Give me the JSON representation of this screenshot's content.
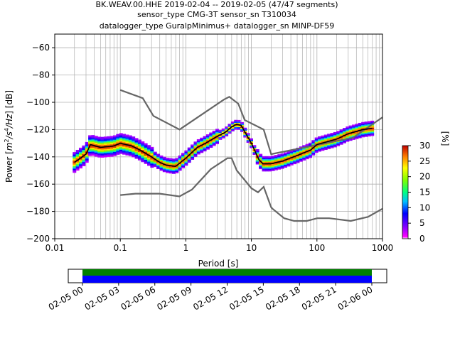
{
  "title": {
    "line1": "BK.WEAV.00.HHE   2019-02-04 -- 2019-02-05  (47/47 segments)",
    "line2": "sensor_type CMG-3T sensor_sn T310034",
    "line3": "datalogger_type GuralpMinimus+ datalogger_sn MINP-DF59"
  },
  "colors": {
    "noise_model": "#666666",
    "mean_line": "#000000",
    "grid": "#b0b0b0",
    "coverage_green": "#008000",
    "coverage_blue": "#0000ff"
  },
  "chart_data": [
    {
      "type": "heatmap",
      "title": "",
      "xlabel": "Period [s]",
      "ylabel_prefix": "Power [",
      "ylabel_unit_m": "m",
      "ylabel_unit_exp2": "2",
      "ylabel_unit_mid": "/s",
      "ylabel_unit_exp4": "4",
      "ylabel_unit_end": "/Hz",
      "ylabel_suffix": "] [dB]",
      "x_scale": "log",
      "xlim": [
        0.01,
        1000
      ],
      "ylim": [
        -200,
        -50
      ],
      "x_ticks": [
        0.01,
        0.1,
        1,
        10,
        100,
        1000
      ],
      "x_tick_labels": [
        "0.01",
        "0.1",
        "1",
        "10",
        "100",
        "1000"
      ],
      "y_ticks": [
        -200,
        -180,
        -160,
        -140,
        -120,
        -100,
        -80,
        -60
      ],
      "y_tick_labels": [
        "−200",
        "−180",
        "−160",
        "−140",
        "−120",
        "−100",
        "−80",
        "−60"
      ],
      "grid": true,
      "colorbar": {
        "label": "[%]",
        "range": [
          0,
          30
        ],
        "ticks": [
          0,
          5,
          10,
          15,
          20,
          25,
          30
        ],
        "tick_labels": [
          "0",
          "5",
          "10",
          "15",
          "20",
          "25",
          "30"
        ]
      },
      "series": [
        {
          "role": "upper noise model",
          "x": [
            0.1,
            0.22,
            0.32,
            0.8,
            3.8,
            4.6,
            6.3,
            7.9,
            15.4,
            20,
            354.8,
            1000
          ],
          "y": [
            -91,
            -97,
            -110,
            -120,
            -98,
            -96,
            -101,
            -113,
            -120,
            -138,
            -126,
            -111
          ]
        },
        {
          "role": "lower noise model",
          "x": [
            0.1,
            0.17,
            0.4,
            0.8,
            1.24,
            2.4,
            4.3,
            5,
            6,
            10,
            12.6,
            15.4,
            20,
            21,
            31.6,
            45,
            70,
            101,
            154,
            328,
            600,
            1000
          ],
          "y": [
            -168,
            -167,
            -167,
            -169,
            -164,
            -149,
            -141,
            -141,
            -150,
            -163,
            -166,
            -162,
            -177,
            -178,
            -185,
            -187,
            -187,
            -185,
            -185,
            -187,
            -184,
            -178
          ]
        },
        {
          "role": "mean PSD",
          "x": [
            0.02,
            0.03,
            0.035,
            0.05,
            0.08,
            0.1,
            0.15,
            0.2,
            0.3,
            0.4,
            0.5,
            0.7,
            1,
            1.5,
            2,
            3,
            4,
            5,
            6,
            7,
            8,
            10,
            13,
            15,
            20,
            30,
            50,
            80,
            100,
            200,
            300,
            500,
            700
          ],
          "y": [
            -144,
            -138,
            -131,
            -133,
            -132,
            -130,
            -132,
            -135,
            -140,
            -144,
            -146,
            -147,
            -141,
            -133,
            -130,
            -125,
            -122,
            -118,
            -116,
            -117,
            -122,
            -130,
            -142,
            -145,
            -145,
            -143,
            -139,
            -135,
            -131,
            -127,
            -123,
            -120,
            -119
          ]
        }
      ]
    },
    {
      "type": "bar",
      "role": "data coverage timeline",
      "x_tick_labels": [
        "02-05 00",
        "02-05 03",
        "02-05 06",
        "02-05 09",
        "02-05 12",
        "02-05 15",
        "02-05 18",
        "02-05 21",
        "02-06 00"
      ],
      "coverage_start": "02-05 00",
      "coverage_end": "02-06 00",
      "coverage_fraction": 1.0
    }
  ]
}
